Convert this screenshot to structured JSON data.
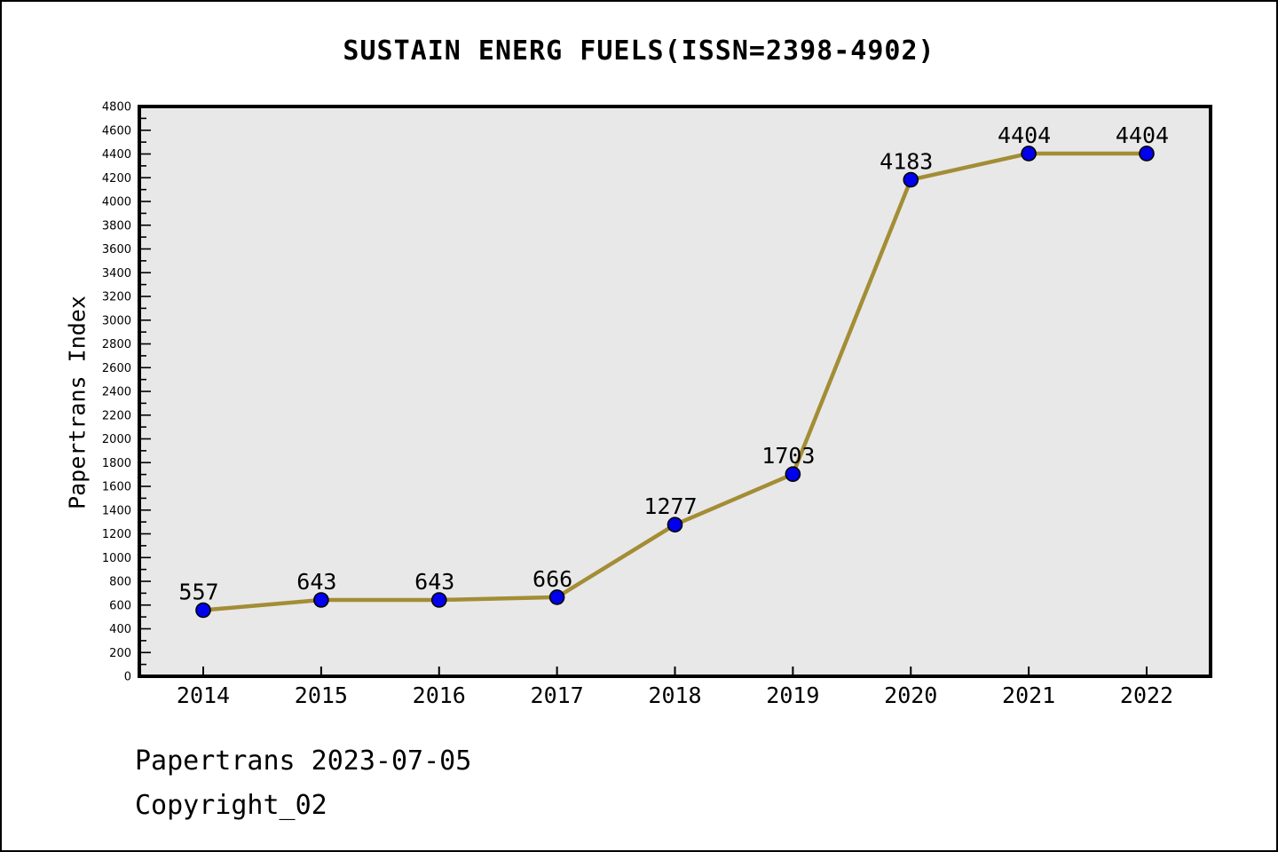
{
  "title": "SUSTAIN ENERG FUELS(ISSN=2398-4902)",
  "footer": {
    "line1": "Papertrans 2023-07-05",
    "line2": "Copyright_02"
  },
  "chart_data": {
    "type": "line",
    "title": "SUSTAIN ENERG FUELS(ISSN=2398-4902)",
    "categories": [
      "2014",
      "2015",
      "2016",
      "2017",
      "2018",
      "2019",
      "2020",
      "2021",
      "2022"
    ],
    "values": [
      557,
      643,
      643,
      666,
      1277,
      1703,
      4183,
      4404,
      4404
    ],
    "point_labels": [
      "557",
      "643",
      "643",
      "666",
      "1277",
      "1703",
      "4183",
      "4404",
      "4404"
    ],
    "xlabel": "",
    "ylabel": "Papertrans Index",
    "ylim": [
      0,
      4800
    ],
    "ytick_major_step": 200,
    "ytick_minor_step": 100,
    "grid": false,
    "legend": null,
    "colors": {
      "line": "#A38D35",
      "marker_fill": "#0000EE",
      "marker_edge": "#000000",
      "plot_background": "#E8E8E8",
      "figure_background": "#FFFFFF",
      "axis": "#000000",
      "text": "#000000"
    }
  }
}
